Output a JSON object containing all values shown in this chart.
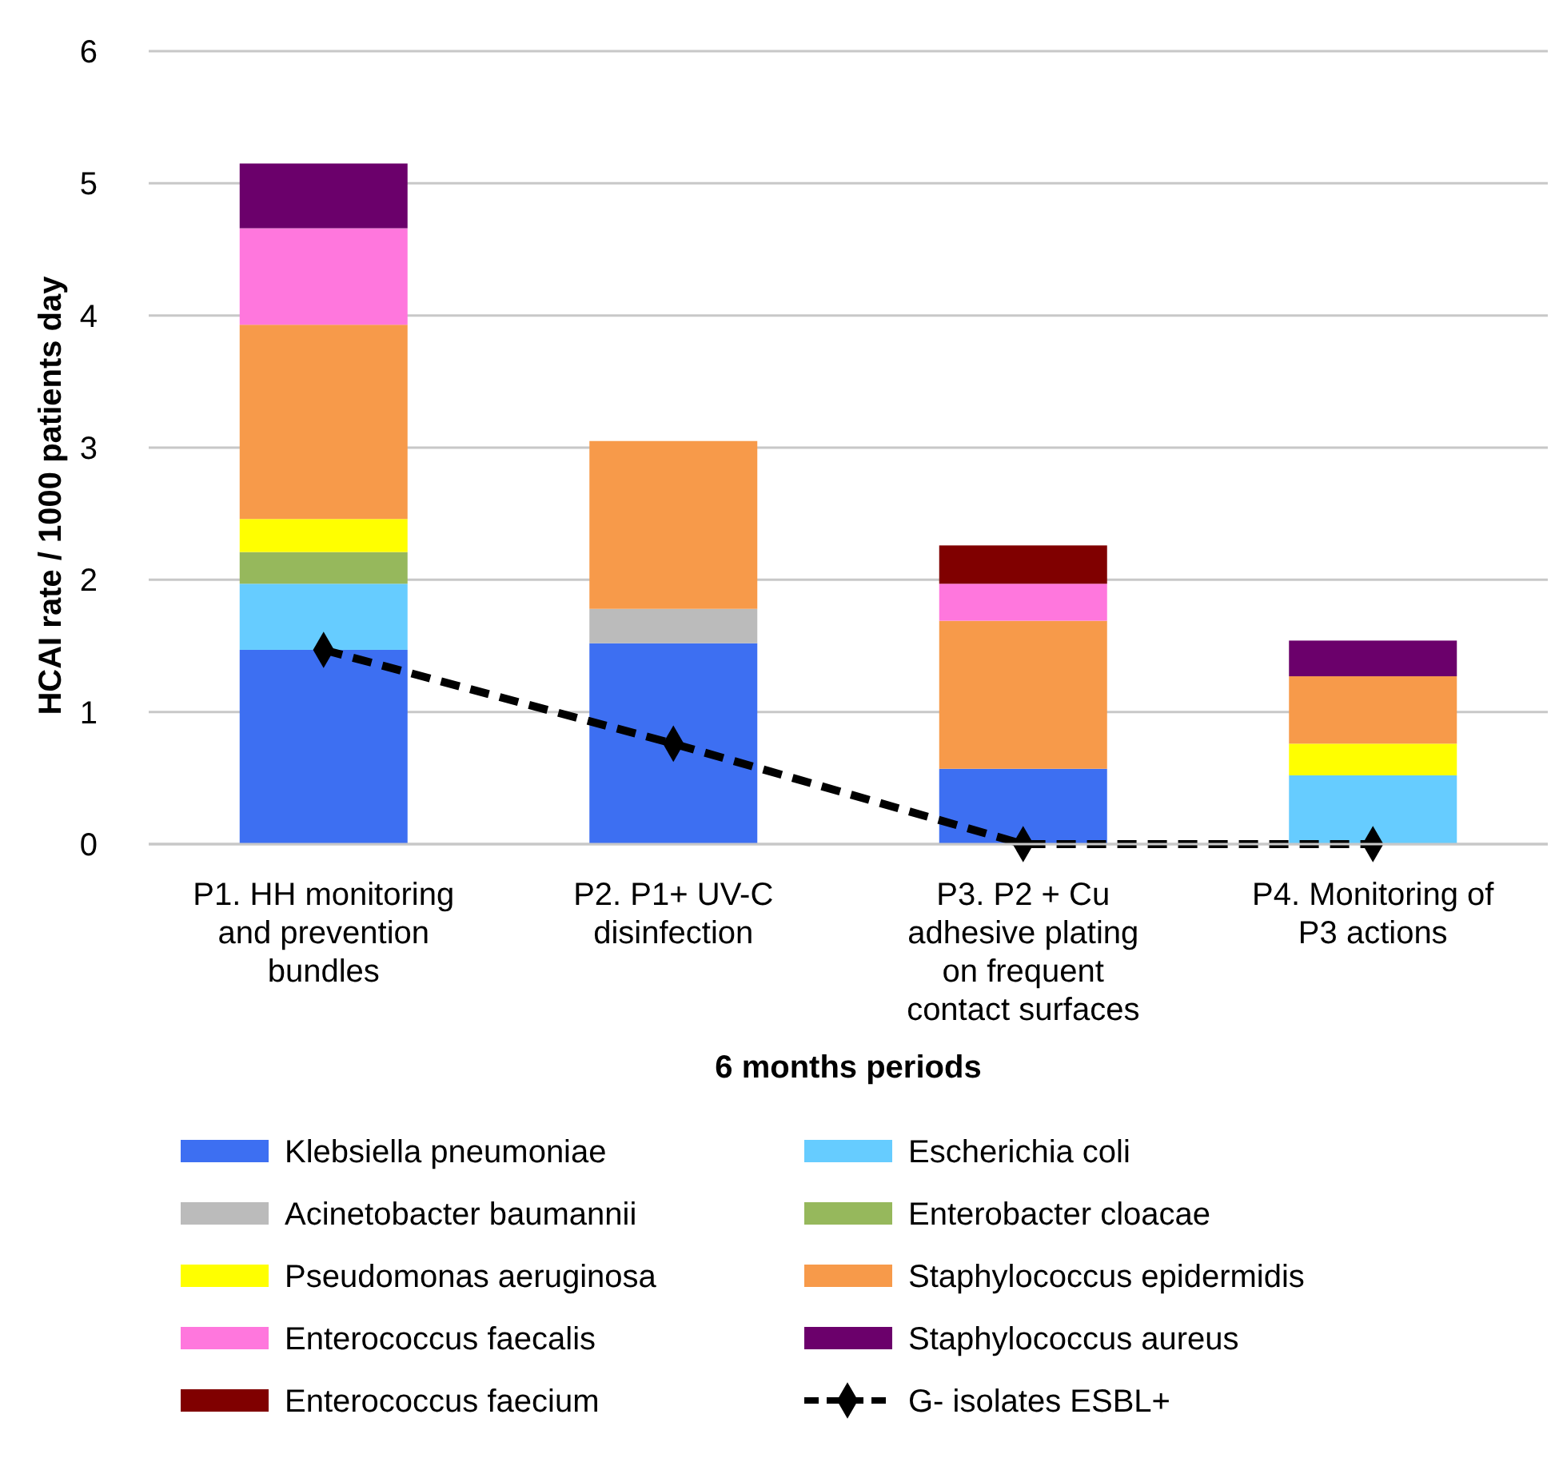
{
  "chart_data": {
    "type": "bar",
    "stacked": true,
    "xlabel": "6 months periods",
    "ylabel": "HCAI rate / 1000 patients day",
    "categories": [
      "P1. HH monitoring and prevention bundles",
      "P2. P1+ UV-C disinfection",
      "P3. P2 + Cu adhesive plating on frequent contact surfaces",
      "P4. Monitoring of P3 actions"
    ],
    "ylim": [
      0,
      6
    ],
    "yticks": [
      0,
      1,
      2,
      3,
      4,
      5,
      6
    ],
    "grid": "y",
    "legend": "bottom",
    "series": [
      {
        "name": "Klebsiella pneumoniae",
        "color": "#3d6ff2",
        "values": [
          1.47,
          1.52,
          0.57,
          null
        ]
      },
      {
        "name": "Escherichia coli",
        "color": "#66ccff",
        "values": [
          0.5,
          null,
          null,
          0.52
        ]
      },
      {
        "name": "Acinetobacter baumannii",
        "color": "#bbbbbb",
        "values": [
          null,
          0.26,
          null,
          null
        ]
      },
      {
        "name": "Enterobacter cloacae",
        "color": "#96b85c",
        "values": [
          0.24,
          null,
          null,
          null
        ]
      },
      {
        "name": "Pseudomonas aeruginosa",
        "color": "#ffff00",
        "values": [
          0.25,
          null,
          null,
          0.24
        ]
      },
      {
        "name": "Staphylococcus epidermidis",
        "color": "#f79a4a",
        "values": [
          1.47,
          1.27,
          1.12,
          0.51
        ]
      },
      {
        "name": "Enterococcus faecalis",
        "color": "#ff77dd",
        "values": [
          0.73,
          null,
          0.28,
          null
        ]
      },
      {
        "name": "Staphylococcus aureus",
        "color": "#6b006b",
        "values": [
          0.49,
          null,
          null,
          0.27
        ]
      },
      {
        "name": "Enterococcus faecium",
        "color": "#800000",
        "values": [
          null,
          null,
          0.29,
          null
        ]
      },
      {
        "name": "G- isolates ESBL+",
        "type": "line",
        "color": "#000000",
        "marker": "diamond",
        "line_style": "dashed",
        "values": [
          1.47,
          0.76,
          0,
          0
        ]
      }
    ]
  }
}
